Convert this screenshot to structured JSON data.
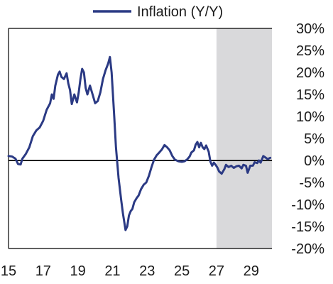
{
  "chart_data": {
    "type": "line",
    "title": "",
    "xlabel": "",
    "ylabel": "",
    "colors": {
      "series": "#2b3a84",
      "shade": "#d9d9db",
      "axis": "#000000"
    },
    "xlim": [
      2015,
      2030.2
    ],
    "ylim": [
      -20,
      30
    ],
    "x_ticks": [
      2015,
      2017,
      2019,
      2021,
      2023,
      2025,
      2027,
      2029
    ],
    "x_tick_labels": [
      "15",
      "17",
      "19",
      "21",
      "23",
      "25",
      "27",
      "29"
    ],
    "y_ticks": [
      30,
      25,
      20,
      15,
      10,
      5,
      0,
      -5,
      -10,
      -15,
      -20
    ],
    "y_tick_labels": [
      "30%",
      "25%",
      "20%",
      "15%",
      "10%",
      "5%",
      "0%",
      "-5%",
      "-10%",
      "-15%",
      "-20%"
    ],
    "y_axis_side": "right",
    "zero_line": true,
    "shaded_region": {
      "x_start": 2027.0,
      "x_end": 2030.2,
      "meaning": "forecast"
    },
    "legend": {
      "position": "top-right",
      "entries": [
        "Inflation (Y/Y)"
      ]
    },
    "series": [
      {
        "name": "Inflation (Y/Y)",
        "points": [
          [
            2015.0,
            1.0
          ],
          [
            2015.2,
            0.9
          ],
          [
            2015.4,
            0.4
          ],
          [
            2015.55,
            -0.8
          ],
          [
            2015.7,
            -0.9
          ],
          [
            2015.8,
            0.4
          ],
          [
            2016.0,
            1.5
          ],
          [
            2016.2,
            3.0
          ],
          [
            2016.4,
            5.5
          ],
          [
            2016.6,
            6.8
          ],
          [
            2016.8,
            7.5
          ],
          [
            2017.0,
            9.0
          ],
          [
            2017.2,
            11.5
          ],
          [
            2017.4,
            13.0
          ],
          [
            2017.5,
            15.0
          ],
          [
            2017.6,
            14.0
          ],
          [
            2017.7,
            17.0
          ],
          [
            2017.85,
            19.5
          ],
          [
            2017.95,
            20.2
          ],
          [
            2018.05,
            19.0
          ],
          [
            2018.2,
            18.5
          ],
          [
            2018.35,
            19.8
          ],
          [
            2018.45,
            17.5
          ],
          [
            2018.55,
            16.0
          ],
          [
            2018.65,
            12.8
          ],
          [
            2018.8,
            15.0
          ],
          [
            2018.95,
            13.2
          ],
          [
            2019.05,
            15.5
          ],
          [
            2019.15,
            18.5
          ],
          [
            2019.25,
            20.8
          ],
          [
            2019.35,
            20.0
          ],
          [
            2019.45,
            16.5
          ],
          [
            2019.55,
            15.0
          ],
          [
            2019.7,
            17.0
          ],
          [
            2019.85,
            15.0
          ],
          [
            2020.0,
            13.0
          ],
          [
            2020.15,
            13.5
          ],
          [
            2020.3,
            15.5
          ],
          [
            2020.45,
            18.5
          ],
          [
            2020.6,
            20.5
          ],
          [
            2020.75,
            22.0
          ],
          [
            2020.85,
            23.5
          ],
          [
            2020.95,
            20.0
          ],
          [
            2021.1,
            10.0
          ],
          [
            2021.2,
            3.0
          ],
          [
            2021.35,
            -4.0
          ],
          [
            2021.5,
            -9.0
          ],
          [
            2021.6,
            -12.0
          ],
          [
            2021.75,
            -15.8
          ],
          [
            2021.85,
            -15.0
          ],
          [
            2021.95,
            -12.5
          ],
          [
            2022.05,
            -11.5
          ],
          [
            2022.15,
            -11.0
          ],
          [
            2022.25,
            -9.5
          ],
          [
            2022.4,
            -8.5
          ],
          [
            2022.5,
            -8.0
          ],
          [
            2022.65,
            -6.5
          ],
          [
            2022.8,
            -5.5
          ],
          [
            2022.95,
            -5.0
          ],
          [
            2023.1,
            -3.5
          ],
          [
            2023.25,
            -1.5
          ],
          [
            2023.4,
            0.2
          ],
          [
            2023.55,
            1.2
          ],
          [
            2023.7,
            1.8
          ],
          [
            2023.85,
            2.5
          ],
          [
            2024.0,
            3.5
          ],
          [
            2024.15,
            3.0
          ],
          [
            2024.3,
            2.3
          ],
          [
            2024.45,
            1.0
          ],
          [
            2024.6,
            0.2
          ],
          [
            2024.8,
            -0.2
          ],
          [
            2025.0,
            -0.3
          ],
          [
            2025.15,
            -0.2
          ],
          [
            2025.3,
            0.2
          ],
          [
            2025.45,
            0.9
          ],
          [
            2025.55,
            1.8
          ],
          [
            2025.7,
            2.3
          ],
          [
            2025.8,
            3.6
          ],
          [
            2025.9,
            4.2
          ],
          [
            2026.0,
            3.0
          ],
          [
            2026.1,
            4.0
          ],
          [
            2026.2,
            3.0
          ],
          [
            2026.3,
            2.6
          ],
          [
            2026.4,
            3.4
          ],
          [
            2026.55,
            2.0
          ],
          [
            2026.65,
            -0.3
          ],
          [
            2026.75,
            -1.2
          ],
          [
            2026.85,
            -0.5
          ],
          [
            2026.95,
            -1.0
          ],
          [
            2027.05,
            -1.6
          ],
          [
            2027.15,
            -2.5
          ],
          [
            2027.3,
            -3.0
          ],
          [
            2027.45,
            -2.0
          ],
          [
            2027.55,
            -1.0
          ],
          [
            2027.7,
            -1.5
          ],
          [
            2027.85,
            -1.2
          ],
          [
            2028.0,
            -1.7
          ],
          [
            2028.15,
            -1.3
          ],
          [
            2028.3,
            -1.2
          ],
          [
            2028.45,
            -1.8
          ],
          [
            2028.55,
            -1.0
          ],
          [
            2028.7,
            -1.2
          ],
          [
            2028.8,
            -2.8
          ],
          [
            2028.95,
            -1.2
          ],
          [
            2029.1,
            -1.2
          ],
          [
            2029.2,
            -0.4
          ],
          [
            2029.35,
            -0.6
          ],
          [
            2029.45,
            0.0
          ],
          [
            2029.55,
            -0.5
          ],
          [
            2029.7,
            1.0
          ],
          [
            2029.85,
            0.6
          ],
          [
            2029.95,
            0.3
          ],
          [
            2030.1,
            0.6
          ]
        ]
      }
    ]
  }
}
